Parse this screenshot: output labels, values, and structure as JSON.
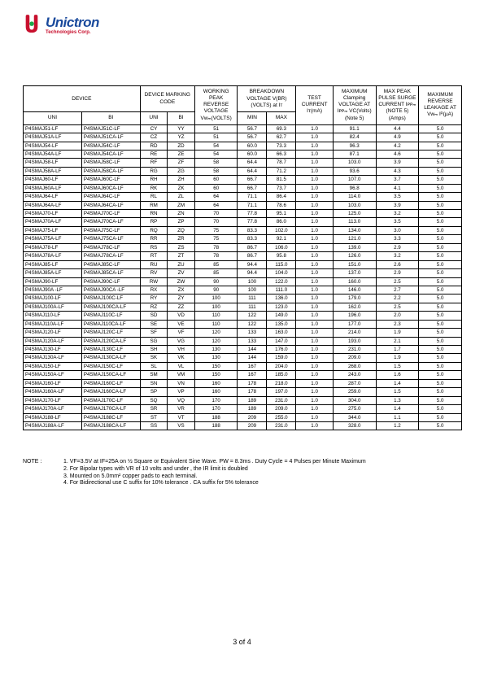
{
  "logo": {
    "name": "Unictron",
    "sub": "Technologies Corp."
  },
  "headers": {
    "device": "DEVICE",
    "marking": "DEVICE MARKING CODE",
    "working": "WORKING PEAK REVERSE VOLTAGE Vᴡₘ(VOLTS)",
    "breakdown": "BREAKDOWN VOLTAGE V(BR) (VOLTS) at Iᴛ",
    "test": "TEST CURRENT Iᴛ(mA)",
    "clamp": "MAXIMUM Clamping VOLTAGE AT Iᴘᴘₘ VC(Volts) (Note 5)",
    "peak": "MAX PEAK PULSE SURGE CURRENT Iᴘᴘₘ (NOTE 5) (Amps)",
    "leak": "MAXIMUM REVERSE LEAKAGE AT Vᴡₘ Iᴿ(µA)",
    "uni": "UNI",
    "bi": "BI",
    "min": "MIN",
    "max": "MAX"
  },
  "rows": [
    [
      "P4SMAJ51-LF",
      "P4SMAJ51C-LF",
      "CY",
      "YY",
      "51",
      "56.7",
      "69.3",
      "1.0",
      "91.1",
      "4.4",
      "5.0"
    ],
    [
      "P4SMAJ51A-LF",
      "P4SMAJ51CA-LF",
      "CZ",
      "YZ",
      "51",
      "56.7",
      "62.7",
      "1.0",
      "82.4",
      "4.9",
      "5.0"
    ],
    [
      "P4SMAJ54-LF",
      "P4SMAJ54C-LF",
      "RD",
      "ZD",
      "54",
      "60.0",
      "73.3",
      "1.0",
      "96.3",
      "4.2",
      "5.0"
    ],
    [
      "P4SMAJ54A-LF",
      "P4SMAJ54CA-LF",
      "RE",
      "ZE",
      "54",
      "60.0",
      "66.3",
      "1.0",
      "87.1",
      "4.6",
      "5.0"
    ],
    [
      "P4SMAJ58-LF",
      "P4SMAJ58C-LF",
      "RF",
      "ZF",
      "58",
      "64.4",
      "78.7",
      "1.0",
      "103.0",
      "3.9",
      "5.0"
    ],
    [
      "P4SMAJ58A-LF",
      "P4SMAJ58CA-LF",
      "RG",
      "ZG",
      "58",
      "64.4",
      "71.2",
      "1.0",
      "93.6",
      "4.3",
      "5.0"
    ],
    [
      "P4SMAJ60-LF",
      "P4SMAJ60C-LF",
      "RH",
      "ZH",
      "60",
      "66.7",
      "81.5",
      "1.0",
      "107.0",
      "3.7",
      "5.0"
    ],
    [
      "P4SMAJ60A-LF",
      "P4SMAJ60CA-LF",
      "RK",
      "ZK",
      "60",
      "66.7",
      "73.7",
      "1.0",
      "96.8",
      "4.1",
      "5.0"
    ],
    [
      "P4SMAJ64-LF",
      "P4SMAJ64C-LF",
      "RL",
      "ZL",
      "64",
      "71.1",
      "86.4",
      "1.0",
      "114.0",
      "3.5",
      "5.0"
    ],
    [
      "P4SMAJ64A-LF",
      "P4SMAJ64CA-LF",
      "RM",
      "ZM",
      "64",
      "71.1",
      "78.6",
      "1.0",
      "103.0",
      "3.9",
      "5.0"
    ],
    [
      "P4SMAJ70-LF",
      "P4SMAJ70C-LF",
      "RN",
      "ZN",
      "70",
      "77.8",
      "95.1",
      "1.0",
      "125.0",
      "3.2",
      "5.0"
    ],
    [
      "P4SMAJ70A-LF",
      "P4SMAJ70CA-LF",
      "RP",
      "ZP",
      "70",
      "77.8",
      "86.0",
      "1.0",
      "113.0",
      "3.5",
      "5.0"
    ],
    [
      "P4SMAJ75-LF",
      "P4SMAJ75C-LF",
      "RQ",
      "ZQ",
      "75",
      "83.3",
      "102.0",
      "1.0",
      "134.0",
      "3.0",
      "5.0"
    ],
    [
      "P4SMAJ75A-LF",
      "P4SMAJ75CA-LF",
      "RR",
      "ZR",
      "75",
      "83.3",
      "92.1",
      "1.0",
      "121.0",
      "3.3",
      "5.0"
    ],
    [
      "P4SMAJ78-LF",
      "P4SMAJ78C-LF",
      "RS",
      "ZS",
      "78",
      "86.7",
      "106.0",
      "1.0",
      "139.0",
      "2.9",
      "5.0"
    ],
    [
      "P4SMAJ78A-LF",
      "P4SMAJ78CA-LF",
      "RT",
      "ZT",
      "78",
      "86.7",
      "95.8",
      "1.0",
      "126.0",
      "3.2",
      "5.0"
    ],
    [
      "P4SMAJ85-LF",
      "P4SMAJ85C-LF",
      "RU",
      "ZU",
      "85",
      "94.4",
      "115.0",
      "1.0",
      "151.0",
      "2.6",
      "5.0"
    ],
    [
      "P4SMAJ85A-LF",
      "P4SMAJ85CA-LF",
      "RV",
      "ZV",
      "85",
      "94.4",
      "104.0",
      "1.0",
      "137.0",
      "2.9",
      "5.0"
    ],
    [
      "P4SMAJ90-LF",
      "P4SMAJ90C-LF",
      "RW",
      "ZW",
      "90",
      "100",
      "122.0",
      "1.0",
      "160.0",
      "2.5",
      "5.0"
    ],
    [
      "P4SMAJ90A -LF",
      "P4SMAJ90CA -LF",
      "RX",
      "ZX",
      "90",
      "100",
      "111.0",
      "1.0",
      "146.0",
      "2.7",
      "5.0"
    ],
    [
      "P4SMAJ100-LF",
      "P4SMAJ100C-LF",
      "RY",
      "ZY",
      "100",
      "111",
      "136.0",
      "1.0",
      "179.0",
      "2.2",
      "5.0"
    ],
    [
      "P4SMAJ100A-LF",
      "P4SMAJ100CA-LF",
      "RZ",
      "ZZ",
      "100",
      "111",
      "123.0",
      "1.0",
      "162.0",
      "2.5",
      "5.0"
    ],
    [
      "P4SMAJ110-LF",
      "P4SMAJ110C-LF",
      "SD",
      "VD",
      "110",
      "122",
      "149.0",
      "1.0",
      "196.0",
      "2.0",
      "5.0"
    ],
    [
      "P4SMAJ110A-LF",
      "P4SMAJ110CA-LF",
      "SE",
      "VE",
      "110",
      "122",
      "135.0",
      "1.0",
      "177.0",
      "2.3",
      "5.0"
    ],
    [
      "P4SMAJ120-LF",
      "P4SMAJ120C-LF",
      "SF",
      "VF",
      "120",
      "133",
      "163.0",
      "1.0",
      "214.0",
      "1.9",
      "5.0"
    ],
    [
      "P4SMAJ120A-LF",
      "P4SMAJ120CA-LF",
      "SG",
      "VG",
      "120",
      "133",
      "147.0",
      "1.0",
      "193.0",
      "2.1",
      "5.0"
    ],
    [
      "P4SMAJ130-LF",
      "P4SMAJ130C-LF",
      "SH",
      "VH",
      "130",
      "144",
      "176.0",
      "1.0",
      "231.0",
      "1.7",
      "5.0"
    ],
    [
      "P4SMAJ130A-LF",
      "P4SMAJ130CA-LF",
      "SK",
      "VK",
      "130",
      "144",
      "159.0",
      "1.0",
      "209.0",
      "1.9",
      "5.0"
    ],
    [
      "P4SMAJ150-LF",
      "P4SMAJ150C-LF",
      "SL",
      "VL",
      "150",
      "167",
      "204.0",
      "1.0",
      "268.0",
      "1.5",
      "5.0"
    ],
    [
      "P4SMAJ150A-LF",
      "P4SMAJ150CA-LF",
      "SM",
      "VM",
      "150",
      "167",
      "185.0",
      "1.0",
      "243.0",
      "1.6",
      "5.0"
    ],
    [
      "P4SMAJ160-LF",
      "P4SMAJ160C-LF",
      "SN",
      "VN",
      "160",
      "178",
      "218.0",
      "1.0",
      "287.0",
      "1.4",
      "5.0"
    ],
    [
      "P4SMAJ160A-LF",
      "P4SMAJ160CA-LF",
      "SP",
      "VP",
      "160",
      "178",
      "197.0",
      "1.0",
      "259.0",
      "1.5",
      "5.0"
    ],
    [
      "P4SMAJ170-LF",
      "P4SMAJ170C-LF",
      "SQ",
      "VQ",
      "170",
      "189",
      "231.0",
      "1.0",
      "304.0",
      "1.3",
      "5.0"
    ],
    [
      "P4SMAJ170A-LF",
      "P4SMAJ170CA-LF",
      "SR",
      "VR",
      "170",
      "189",
      "209.0",
      "1.0",
      "275.0",
      "1.4",
      "5.0"
    ],
    [
      "P4SMAJ188-LF",
      "P4SMAJ188C-LF",
      "ST",
      "VT",
      "188",
      "209",
      "255.0",
      "1.0",
      "344.0",
      "1.1",
      "5.0"
    ],
    [
      "P4SMAJ188A-LF",
      "P4SMAJ188CA-LF",
      "SS",
      "VS",
      "188",
      "209",
      "231.0",
      "1.0",
      "328.0",
      "1.2",
      "5.0"
    ]
  ],
  "notes": {
    "label": "NOTE :",
    "items": [
      "1. VF=3.5V at IF=25A on ½ Square or Equivalent Sine Wave. PW = 8.3ms . Duty Cycle = 4 Pulses per Minute Maximum",
      "2. For Bipolar types with VR of 10 volts and under , the IR limit is doubled",
      "3. Mounted on 5.0mm² copper pads to each terminal.",
      "4. For Bidirectional use C suffix for 10%   tolerance . CA suffix for 5%   tolerance"
    ]
  },
  "pagenum": "3 of 4"
}
